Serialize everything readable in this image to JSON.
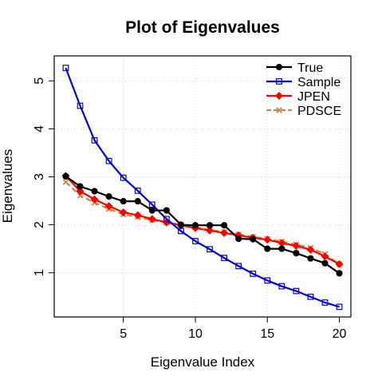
{
  "chart_data": {
    "type": "line",
    "title": "Plot of Eigenvalues",
    "xlabel": "Eigenvalue Index",
    "ylabel": "Eigenvalues",
    "xlim": [
      0.2,
      20.8
    ],
    "ylim": [
      0.08,
      5.52
    ],
    "xticks": [
      5,
      10,
      15,
      20
    ],
    "yticks": [
      1,
      2,
      3,
      4,
      5
    ],
    "grid": true,
    "legend_position": "top-right",
    "x": [
      1,
      2,
      3,
      4,
      5,
      6,
      7,
      8,
      9,
      10,
      11,
      12,
      13,
      14,
      15,
      16,
      17,
      18,
      19,
      20
    ],
    "series": [
      {
        "name": "True",
        "color": "#000000",
        "marker": "circle",
        "values": [
          3.01,
          2.8,
          2.7,
          2.59,
          2.49,
          2.49,
          2.3,
          2.3,
          2.0,
          1.99,
          1.99,
          1.99,
          1.71,
          1.7,
          1.5,
          1.5,
          1.41,
          1.3,
          1.2,
          0.99
        ]
      },
      {
        "name": "Sample",
        "color": "#0000dd",
        "marker": "square",
        "values": [
          5.27,
          4.48,
          3.76,
          3.33,
          2.98,
          2.71,
          2.42,
          2.12,
          1.87,
          1.66,
          1.49,
          1.31,
          1.14,
          0.98,
          0.84,
          0.72,
          0.62,
          0.5,
          0.38,
          0.29
        ]
      },
      {
        "name": "JPEN",
        "color": "#ff0000",
        "marker": "diamond",
        "values": [
          3.02,
          2.7,
          2.53,
          2.39,
          2.26,
          2.2,
          2.12,
          2.05,
          1.99,
          1.93,
          1.88,
          1.83,
          1.78,
          1.73,
          1.69,
          1.62,
          1.56,
          1.48,
          1.34,
          1.18
        ]
      },
      {
        "name": "PDSCE",
        "color": "#cd853f",
        "marker": "cross",
        "values": [
          2.89,
          2.61,
          2.46,
          2.33,
          2.22,
          2.16,
          2.1,
          2.05,
          2.0,
          1.95,
          1.9,
          1.85,
          1.8,
          1.75,
          1.71,
          1.65,
          1.59,
          1.52,
          1.39,
          1.18
        ]
      }
    ]
  }
}
